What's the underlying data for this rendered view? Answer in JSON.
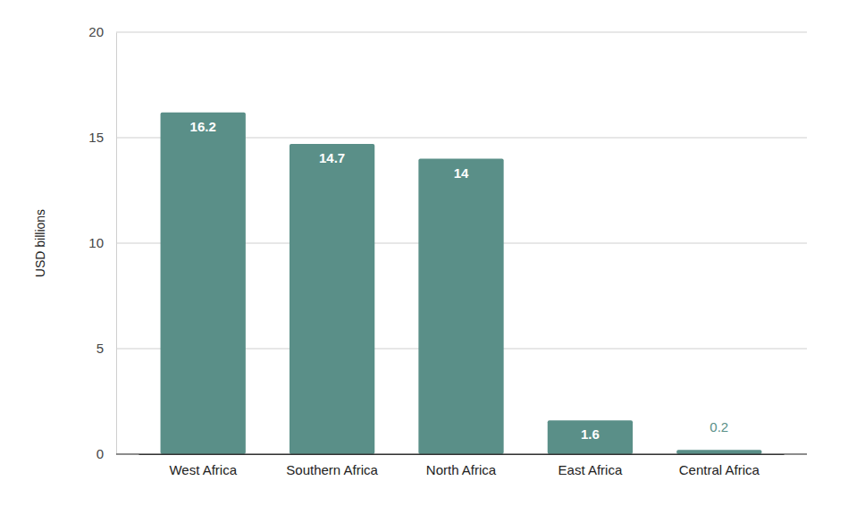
{
  "chart_data": {
    "type": "bar",
    "y_label": "USD billions",
    "categories": [
      "West Africa",
      "Southern Africa",
      "North Africa",
      "East Africa",
      "Central Africa"
    ],
    "values": [
      16.2,
      14.7,
      14,
      1.6,
      0.2
    ],
    "color": "#5a8f88",
    "ylim": [
      0,
      20
    ],
    "yticks": [
      0,
      5,
      10,
      15,
      20
    ],
    "grid": true,
    "data_labels": true
  }
}
